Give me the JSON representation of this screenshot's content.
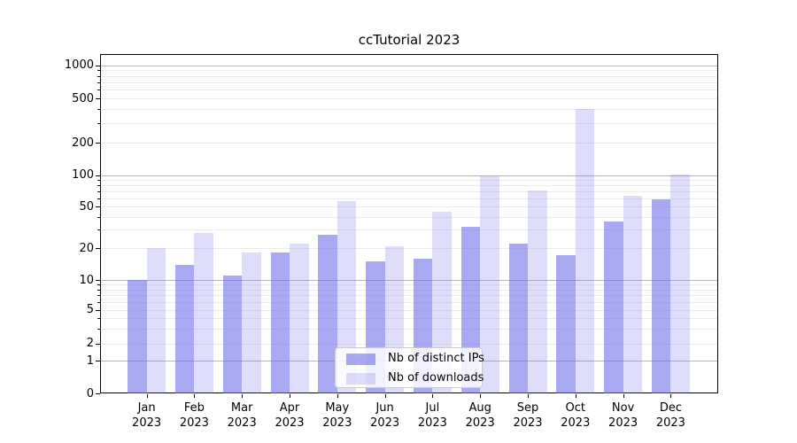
{
  "chart_data": {
    "type": "bar",
    "title": "ccTutorial 2023",
    "categories": [
      "Jan",
      "Feb",
      "Mar",
      "Apr",
      "May",
      "Jun",
      "Jul",
      "Aug",
      "Sep",
      "Oct",
      "Nov",
      "Dec"
    ],
    "category_year": "2023",
    "series": [
      {
        "name": "Nb of distinct IPs",
        "key": "distinct-ips",
        "color": "rgba(105,105,235,0.58)",
        "values": [
          10,
          14,
          11,
          18,
          27,
          15,
          16,
          32,
          22,
          17,
          36,
          59
        ]
      },
      {
        "name": "Nb of downloads",
        "key": "downloads",
        "color": "rgba(105,105,235,0.22)",
        "values": [
          20,
          28,
          18,
          22,
          57,
          21,
          45,
          98,
          71,
          400,
          63,
          102
        ]
      }
    ],
    "y_axis": {
      "scale": "symlog",
      "ticks": [
        0,
        1,
        2,
        5,
        10,
        20,
        50,
        100,
        200,
        500,
        1000
      ],
      "major_grid_values": [
        1,
        10,
        100,
        1000
      ],
      "minor_grid_multiples": [
        2,
        3,
        4,
        5,
        6,
        7,
        8,
        9
      ],
      "minor_grid_decades": [
        1,
        10,
        100
      ]
    },
    "xlabel": "",
    "ylabel": "",
    "grid": true,
    "legend_position": "lower center",
    "colors": {
      "bar_ips": "rgba(105,105,235,0.58)",
      "bar_downloads": "rgba(105,105,235,0.22)",
      "major_grid": "#b5b5b5",
      "minor_grid": "#ececec",
      "axis": "#000000",
      "background": "#ffffff"
    }
  }
}
